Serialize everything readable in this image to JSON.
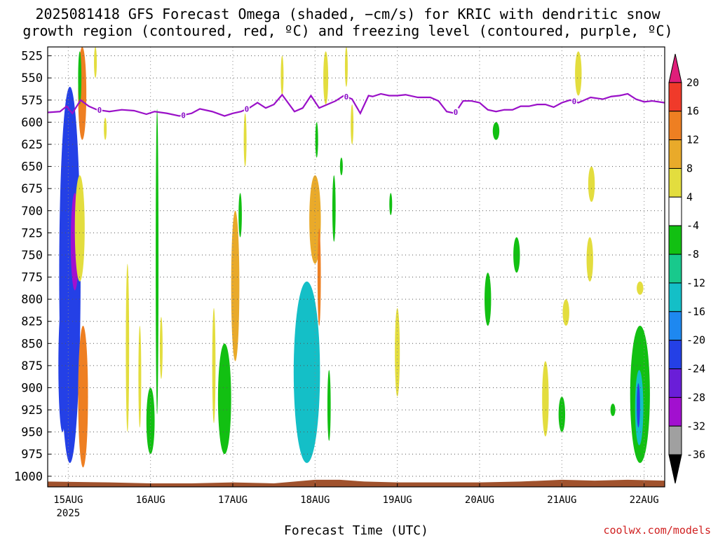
{
  "title": {
    "line1": "2025081418 GFS Forecast Omega (shaded, −cm/s) for KRIC with dendritic snow",
    "line2": "growth region (contoured, red, ºC) and freezing level (contoured, purple, ºC)"
  },
  "credit": "coolwx.com/models",
  "colors": {
    "freezing_level": "#9a10c8",
    "ground": "#a0522d",
    "grid": "#888888"
  },
  "chart_data": {
    "type": "heatmap",
    "title": "2025081418 GFS Forecast Omega (shaded, −cm/s) for KRIC with dendritic snow growth region (contoured, red, ºC) and freezing level (contoured, purple, ºC)",
    "xlabel": "Forecast Time (UTC)",
    "ylabel": "",
    "x_ticks": [
      {
        "label": "15AUG",
        "sublabel": "2025",
        "day": 0
      },
      {
        "label": "16AUG",
        "day": 1
      },
      {
        "label": "17AUG",
        "day": 2
      },
      {
        "label": "18AUG",
        "day": 3
      },
      {
        "label": "19AUG",
        "day": 4
      },
      {
        "label": "20AUG",
        "day": 5
      },
      {
        "label": "21AUG",
        "day": 6
      },
      {
        "label": "22AUG",
        "day": 7
      }
    ],
    "xlim": [
      -0.25,
      7.25
    ],
    "y_ticks": [
      "525",
      "550",
      "575",
      "600",
      "625",
      "650",
      "675",
      "700",
      "725",
      "750",
      "775",
      "800",
      "825",
      "850",
      "875",
      "900",
      "925",
      "950",
      "975",
      "1000"
    ],
    "ylim_hPa": [
      515,
      1012
    ],
    "y_inverted": true,
    "grid": true,
    "colorbar": {
      "ticks": [
        "20",
        "16",
        "12",
        "8",
        "4",
        "-4",
        "-8",
        "-12",
        "-16",
        "-20",
        "-24",
        "-28",
        "-32",
        "-36"
      ],
      "bins": [
        {
          "lo": 20,
          "hi": null,
          "color": "#e01e7a"
        },
        {
          "lo": 16,
          "hi": 20,
          "color": "#f03a2a"
        },
        {
          "lo": 12,
          "hi": 16,
          "color": "#ee7f22"
        },
        {
          "lo": 8,
          "hi": 12,
          "color": "#e9aa2a"
        },
        {
          "lo": 4,
          "hi": 8,
          "color": "#e3dd3e"
        },
        {
          "lo": -4,
          "hi": 4,
          "color": "#ffffff"
        },
        {
          "lo": -8,
          "hi": -4,
          "color": "#12c012"
        },
        {
          "lo": -12,
          "hi": -8,
          "color": "#18c98c"
        },
        {
          "lo": -16,
          "hi": -12,
          "color": "#14bfc7"
        },
        {
          "lo": -20,
          "hi": -16,
          "color": "#1e88f0"
        },
        {
          "lo": -24,
          "hi": -20,
          "color": "#2440e6"
        },
        {
          "lo": -28,
          "hi": -24,
          "color": "#6a1ed8"
        },
        {
          "lo": -32,
          "hi": -28,
          "color": "#a210cf"
        },
        {
          "lo": -36,
          "hi": -32,
          "color": "#a0a0a0"
        },
        {
          "lo": null,
          "hi": -36,
          "color": "#000000"
        }
      ]
    },
    "freezing_level_label": "0",
    "freezing_level_label_days": [
      0.38,
      1.4,
      2.17,
      3.38,
      4.71,
      6.15
    ],
    "freezing_level": {
      "days": [
        -0.25,
        -0.1,
        -0.02,
        0.05,
        0.15,
        0.25,
        0.35,
        0.5,
        0.65,
        0.8,
        0.95,
        1.05,
        1.2,
        1.35,
        1.5,
        1.6,
        1.75,
        1.9,
        2.0,
        2.1,
        2.2,
        2.3,
        2.4,
        2.5,
        2.6,
        2.75,
        2.85,
        2.95,
        3.05,
        3.15,
        3.25,
        3.35,
        3.45,
        3.55,
        3.65,
        3.7,
        3.8,
        3.9,
        4.0,
        4.1,
        4.25,
        4.4,
        4.5,
        4.6,
        4.7,
        4.8,
        4.9,
        5.0,
        5.1,
        5.2,
        5.3,
        5.4,
        5.5,
        5.6,
        5.7,
        5.8,
        5.9,
        6.0,
        6.1,
        6.2,
        6.35,
        6.5,
        6.6,
        6.7,
        6.8,
        6.9,
        7.0,
        7.1,
        7.25
      ],
      "hPa": [
        589,
        588,
        582,
        590,
        575,
        582,
        586,
        588,
        586,
        587,
        591,
        588,
        590,
        593,
        590,
        585,
        588,
        593,
        590,
        588,
        584,
        578,
        584,
        580,
        569,
        588,
        584,
        570,
        584,
        580,
        576,
        570,
        574,
        590,
        570,
        571,
        568,
        570,
        570,
        569,
        572,
        572,
        576,
        588,
        590,
        576,
        576,
        578,
        586,
        588,
        586,
        586,
        582,
        582,
        580,
        580,
        583,
        578,
        575,
        578,
        572,
        574,
        571,
        570,
        568,
        574,
        577,
        576,
        578
      ]
    },
    "dgz_contour_present": false,
    "ground": {
      "days": [
        -0.25,
        0.5,
        1.0,
        1.5,
        2.0,
        2.5,
        3.0,
        3.3,
        3.6,
        4.0,
        4.5,
        5.0,
        5.5,
        6.0,
        6.4,
        6.8,
        7.25
      ],
      "hPa": [
        1006,
        1007,
        1008,
        1008,
        1007,
        1008,
        1004,
        1004,
        1006,
        1007,
        1007,
        1007,
        1006,
        1004,
        1005,
        1004,
        1005
      ]
    },
    "omega_cells": [
      {
        "day": 0.02,
        "p_top": 560,
        "p_bot": 985,
        "halfwidth": 0.13,
        "value": -22
      },
      {
        "day": 0.08,
        "p_top": 680,
        "p_bot": 790,
        "halfwidth": 0.05,
        "value": -30
      },
      {
        "day": -0.07,
        "p_top": 800,
        "p_bot": 950,
        "halfwidth": 0.05,
        "value": -21
      },
      {
        "day": 0.17,
        "p_top": 515,
        "p_bot": 620,
        "halfwidth": 0.05,
        "value": 14
      },
      {
        "day": 0.14,
        "p_top": 520,
        "p_bot": 580,
        "halfwidth": 0.02,
        "value": -6
      },
      {
        "day": 0.14,
        "p_top": 660,
        "p_bot": 780,
        "halfwidth": 0.06,
        "value": 5
      },
      {
        "day": 0.18,
        "p_top": 830,
        "p_bot": 990,
        "halfwidth": 0.06,
        "value": 13
      },
      {
        "day": 0.33,
        "p_top": 515,
        "p_bot": 550,
        "halfwidth": 0.01,
        "value": 5
      },
      {
        "day": 0.45,
        "p_top": 595,
        "p_bot": 620,
        "halfwidth": 0.01,
        "value": 5
      },
      {
        "day": 1.0,
        "p_top": 900,
        "p_bot": 975,
        "halfwidth": 0.05,
        "value": -6
      },
      {
        "day": 1.08,
        "p_top": 585,
        "p_bot": 930,
        "halfwidth": 0.015,
        "value": -6
      },
      {
        "day": 0.72,
        "p_top": 760,
        "p_bot": 950,
        "halfwidth": 0.02,
        "value": 5
      },
      {
        "day": 0.87,
        "p_top": 830,
        "p_bot": 945,
        "halfwidth": 0.01,
        "value": 5
      },
      {
        "day": 1.13,
        "p_top": 820,
        "p_bot": 890,
        "halfwidth": 0.01,
        "value": 5
      },
      {
        "day": 2.03,
        "p_top": 700,
        "p_bot": 870,
        "halfwidth": 0.05,
        "value": 11
      },
      {
        "day": 1.9,
        "p_top": 850,
        "p_bot": 975,
        "halfwidth": 0.08,
        "value": -6
      },
      {
        "day": 2.09,
        "p_top": 680,
        "p_bot": 730,
        "halfwidth": 0.02,
        "value": -6
      },
      {
        "day": 1.77,
        "p_top": 810,
        "p_bot": 940,
        "halfwidth": 0.02,
        "value": 5
      },
      {
        "day": 2.15,
        "p_top": 590,
        "p_bot": 650,
        "halfwidth": 0.01,
        "value": 5
      },
      {
        "day": 3.0,
        "p_top": 660,
        "p_bot": 760,
        "halfwidth": 0.07,
        "value": 11
      },
      {
        "day": 3.05,
        "p_top": 720,
        "p_bot": 830,
        "halfwidth": 0.02,
        "value": 13
      },
      {
        "day": 2.9,
        "p_top": 780,
        "p_bot": 985,
        "halfwidth": 0.16,
        "value": -13
      },
      {
        "day": 3.17,
        "p_top": 880,
        "p_bot": 960,
        "halfwidth": 0.02,
        "value": -6
      },
      {
        "day": 3.23,
        "p_top": 660,
        "p_bot": 735,
        "halfwidth": 0.02,
        "value": -6
      },
      {
        "day": 3.02,
        "p_top": 600,
        "p_bot": 640,
        "halfwidth": 0.015,
        "value": -6
      },
      {
        "day": 3.13,
        "p_top": 520,
        "p_bot": 580,
        "halfwidth": 0.03,
        "value": 6
      },
      {
        "day": 3.38,
        "p_top": 515,
        "p_bot": 560,
        "halfwidth": 0.01,
        "value": 5
      },
      {
        "day": 3.45,
        "p_top": 580,
        "p_bot": 625,
        "halfwidth": 0.01,
        "value": 5
      },
      {
        "day": 3.32,
        "p_top": 640,
        "p_bot": 660,
        "halfwidth": 0.005,
        "value": -6
      },
      {
        "day": 2.6,
        "p_top": 525,
        "p_bot": 570,
        "halfwidth": 0.015,
        "value": 5
      },
      {
        "day": 4.0,
        "p_top": 810,
        "p_bot": 910,
        "halfwidth": 0.03,
        "value": 5
      },
      {
        "day": 3.92,
        "p_top": 680,
        "p_bot": 705,
        "halfwidth": 0.01,
        "value": -6
      },
      {
        "day": 5.1,
        "p_top": 770,
        "p_bot": 830,
        "halfwidth": 0.04,
        "value": -6
      },
      {
        "day": 5.2,
        "p_top": 600,
        "p_bot": 620,
        "halfwidth": 0.04,
        "value": -6
      },
      {
        "day": 5.45,
        "p_top": 730,
        "p_bot": 770,
        "halfwidth": 0.04,
        "value": -6
      },
      {
        "day": 6.2,
        "p_top": 520,
        "p_bot": 570,
        "halfwidth": 0.04,
        "value": 5
      },
      {
        "day": 6.36,
        "p_top": 650,
        "p_bot": 690,
        "halfwidth": 0.04,
        "value": 5
      },
      {
        "day": 6.34,
        "p_top": 730,
        "p_bot": 780,
        "halfwidth": 0.04,
        "value": 5
      },
      {
        "day": 6.05,
        "p_top": 800,
        "p_bot": 830,
        "halfwidth": 0.04,
        "value": 5
      },
      {
        "day": 5.8,
        "p_top": 870,
        "p_bot": 955,
        "halfwidth": 0.04,
        "value": 5
      },
      {
        "day": 6.0,
        "p_top": 910,
        "p_bot": 950,
        "halfwidth": 0.04,
        "value": -6
      },
      {
        "day": 6.95,
        "p_top": 830,
        "p_bot": 985,
        "halfwidth": 0.12,
        "value": -8
      },
      {
        "day": 6.94,
        "p_top": 880,
        "p_bot": 965,
        "halfwidth": 0.05,
        "value": -13
      },
      {
        "day": 6.93,
        "p_top": 895,
        "p_bot": 945,
        "halfwidth": 0.02,
        "value": -22
      },
      {
        "day": 6.62,
        "p_top": 918,
        "p_bot": 932,
        "halfwidth": 0.03,
        "value": -6
      },
      {
        "day": 6.95,
        "p_top": 780,
        "p_bot": 795,
        "halfwidth": 0.04,
        "value": 5
      }
    ]
  }
}
